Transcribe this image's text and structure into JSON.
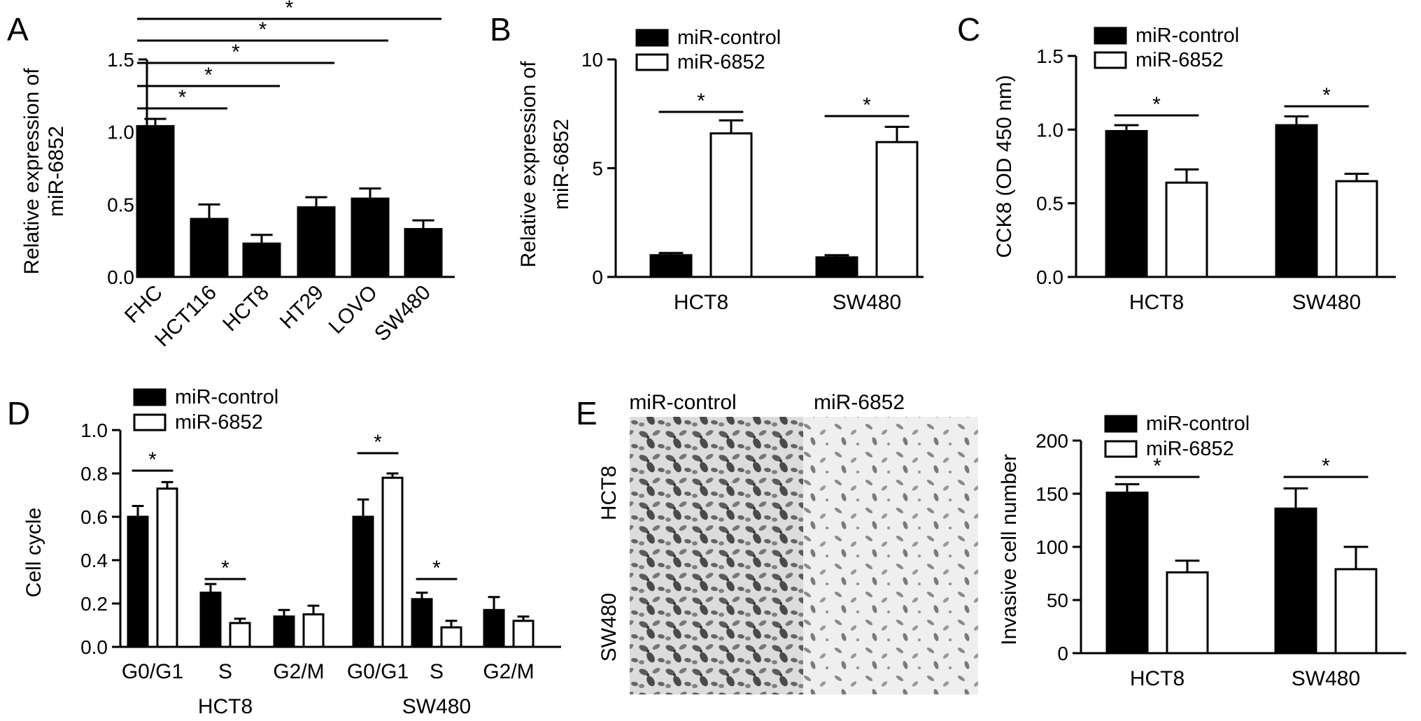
{
  "panels": {
    "A": {
      "label": "A"
    },
    "B": {
      "label": "B"
    },
    "C": {
      "label": "C"
    },
    "D": {
      "label": "D"
    },
    "E": {
      "label": "E",
      "image_columns": [
        "miR-control",
        "miR-6852"
      ],
      "image_rows": [
        "HCT8",
        "SW480"
      ]
    }
  },
  "chart_data": [
    {
      "panel": "A",
      "type": "bar",
      "ylabel": [
        "Relative expression of",
        "miR-6852"
      ],
      "ylim": [
        0,
        1.5
      ],
      "yticks": [
        "0.0",
        "0.5",
        "1.0",
        "1.5"
      ],
      "categories": [
        "FHC",
        "HCT116",
        "HCT8",
        "HT29",
        "LOVO",
        "SW480"
      ],
      "series": [
        {
          "values": [
            1.04,
            0.4,
            0.23,
            0.48,
            0.54,
            0.33
          ],
          "errors": [
            0.05,
            0.1,
            0.06,
            0.07,
            0.07,
            0.06
          ]
        }
      ],
      "significance": [
        "*",
        "*",
        "*",
        "*",
        "*"
      ],
      "legend": "none"
    },
    {
      "panel": "B",
      "type": "bar",
      "ylabel": [
        "Relative expression of",
        "miR-6852"
      ],
      "ylim": [
        0,
        10
      ],
      "yticks": [
        "0",
        "5",
        "10"
      ],
      "categories": [
        "HCT8",
        "SW480"
      ],
      "series": [
        {
          "name": "miR-control",
          "values": [
            1.0,
            0.9
          ],
          "errors": [
            0.1,
            0.1
          ]
        },
        {
          "name": "miR-6852",
          "values": [
            6.6,
            6.2
          ],
          "errors": [
            0.6,
            0.7
          ]
        }
      ],
      "significance": [
        "*",
        "*"
      ],
      "legend": "top-left"
    },
    {
      "panel": "C",
      "type": "bar",
      "ylabel": [
        "CCK8 (OD 450 nm)"
      ],
      "ylim": [
        0,
        1.5
      ],
      "yticks": [
        "0.0",
        "0.5",
        "1.0",
        "1.5"
      ],
      "categories": [
        "HCT8",
        "SW480"
      ],
      "series": [
        {
          "name": "miR-control",
          "values": [
            0.99,
            1.03
          ],
          "errors": [
            0.04,
            0.06
          ]
        },
        {
          "name": "miR-6852",
          "values": [
            0.64,
            0.65
          ],
          "errors": [
            0.09,
            0.05
          ]
        }
      ],
      "significance": [
        "*",
        "*"
      ],
      "legend": "top-left"
    },
    {
      "panel": "D",
      "type": "bar",
      "ylabel": [
        "Cell cycle"
      ],
      "ylim": [
        0,
        1.0
      ],
      "yticks": [
        "0.0",
        "0.2",
        "0.4",
        "0.6",
        "0.8",
        "1.0"
      ],
      "categories": [
        "G0/G1",
        "S",
        "G2/M",
        "G0/G1",
        "S",
        "G2/M"
      ],
      "groups": [
        "HCT8",
        "SW480"
      ],
      "series": [
        {
          "name": "miR-control",
          "values": [
            0.6,
            0.25,
            0.14,
            0.6,
            0.22,
            0.17
          ],
          "errors": [
            0.05,
            0.04,
            0.03,
            0.08,
            0.03,
            0.06
          ]
        },
        {
          "name": "miR-6852",
          "values": [
            0.73,
            0.11,
            0.15,
            0.78,
            0.09,
            0.12
          ],
          "errors": [
            0.03,
            0.02,
            0.04,
            0.02,
            0.03,
            0.02
          ]
        }
      ],
      "significance": [
        "*",
        "*",
        "*",
        "*"
      ],
      "legend": "top-left"
    },
    {
      "panel": "E",
      "type": "bar",
      "ylabel": [
        "Invasive cell number"
      ],
      "ylim": [
        0,
        200
      ],
      "yticks": [
        "0",
        "50",
        "100",
        "150",
        "200"
      ],
      "categories": [
        "HCT8",
        "SW480"
      ],
      "series": [
        {
          "name": "miR-control",
          "values": [
            151,
            136
          ],
          "errors": [
            8,
            19
          ]
        },
        {
          "name": "miR-6852",
          "values": [
            76,
            79
          ],
          "errors": [
            11,
            21
          ]
        }
      ],
      "significance": [
        "*",
        "*"
      ],
      "legend": "top-left"
    }
  ]
}
